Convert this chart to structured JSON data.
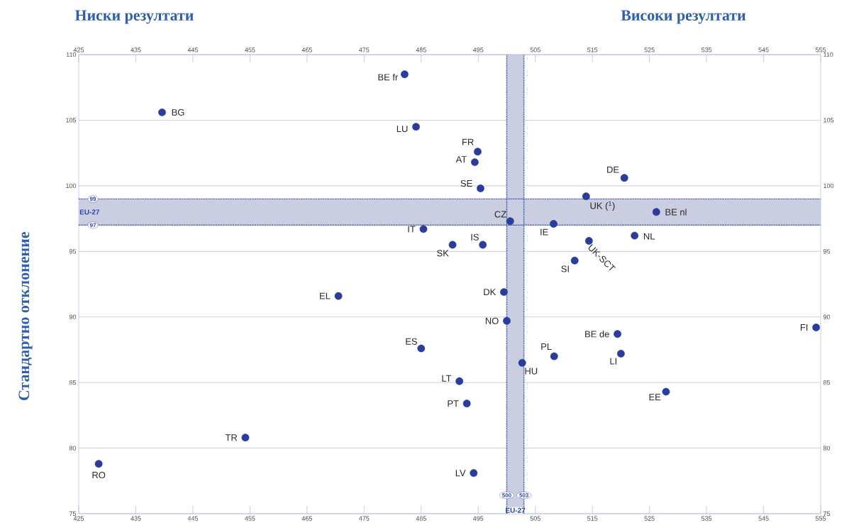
{
  "chart_data": {
    "type": "scatter",
    "ylabel": "Стандартно отклонение",
    "annotations": [
      "Ниски резултати",
      "Високи резултати"
    ],
    "ref_lines": [
      {
        "axis": "y",
        "value": 99,
        "label": "99",
        "color": "#2846aa",
        "line_style": "dotted"
      },
      {
        "axis": "y",
        "value": 97,
        "label": "97",
        "color": "#2846aa",
        "line_style": "dotted"
      },
      {
        "axis": "x",
        "value": 500,
        "label": "500",
        "color": "#2846aa",
        "line_style": "dotted"
      },
      {
        "axis": "x",
        "value": 503,
        "label": "503",
        "color": "#2846aa",
        "line_style": "dotted"
      }
    ],
    "xlim": [
      425,
      555
    ],
    "xticks": [
      425,
      435,
      445,
      455,
      465,
      475,
      485,
      495,
      505,
      515,
      525,
      535,
      545,
      555
    ],
    "x2lim": [
      425,
      555
    ],
    "x2ticks": [
      425,
      435,
      445,
      455,
      465,
      475,
      485,
      495,
      505,
      515,
      525,
      535,
      545,
      555
    ],
    "ylim": [
      75,
      110
    ],
    "yticks": [
      75,
      80,
      85,
      90,
      95,
      100,
      105,
      110
    ],
    "y2lim": [
      75,
      110
    ],
    "y2ticks": [
      75,
      80,
      85,
      90,
      95,
      100,
      105,
      110
    ],
    "grid": "y",
    "bands": [
      {
        "axis": "x",
        "from": 500,
        "to": 503,
        "label": "EU-27",
        "color": "#cbcee0"
      },
      {
        "axis": "y",
        "from": 97,
        "to": 99,
        "label": "EU-27",
        "color": "#cbcee0"
      }
    ],
    "series": [
      {
        "name": "BE fr",
        "color": "#2b3d9b",
        "x": [
          482.1
        ],
        "values": [
          108.5
        ]
      },
      {
        "name": "BG",
        "color": "#2b3d9b",
        "x": [
          439.6
        ],
        "values": [
          105.6
        ]
      },
      {
        "name": "LU",
        "color": "#2b3d9b",
        "x": [
          484.1
        ],
        "values": [
          104.5
        ]
      },
      {
        "name": "FR",
        "color": "#2b3d9b",
        "x": [
          494.9
        ],
        "values": [
          102.6
        ]
      },
      {
        "name": "AT",
        "color": "#2b3d9b",
        "x": [
          494.4
        ],
        "values": [
          101.8
        ]
      },
      {
        "name": "SE",
        "color": "#2b3d9b",
        "x": [
          495.4
        ],
        "values": [
          99.8
        ]
      },
      {
        "name": "DE",
        "color": "#2b3d9b",
        "x": [
          520.6
        ],
        "values": [
          100.6
        ]
      },
      {
        "name": "UK ($^{1}$)",
        "color": "#2b3d9b",
        "x": [
          513.9
        ],
        "values": [
          99.2
        ]
      },
      {
        "name": "BE nl",
        "color": "#2b3d9b",
        "x": [
          526.2
        ],
        "values": [
          98.0
        ]
      },
      {
        "name": "CZ",
        "color": "#2b3d9b",
        "x": [
          500.6
        ],
        "values": [
          97.3
        ]
      },
      {
        "name": "IE",
        "color": "#2b3d9b",
        "x": [
          508.2
        ],
        "values": [
          97.1
        ]
      },
      {
        "name": "IT",
        "color": "#2b3d9b",
        "x": [
          485.4
        ],
        "values": [
          96.7
        ]
      },
      {
        "name": "NL",
        "color": "#2b3d9b",
        "x": [
          522.4
        ],
        "values": [
          96.2
        ]
      },
      {
        "name": "IS",
        "color": "#2b3d9b",
        "x": [
          495.8
        ],
        "values": [
          95.5
        ]
      },
      {
        "name": "SK",
        "color": "#2b3d9b",
        "x": [
          490.5
        ],
        "values": [
          95.5
        ]
      },
      {
        "name": "UK-SCT",
        "color": "#2b3d9b",
        "x": [
          514.4
        ],
        "values": [
          95.8
        ]
      },
      {
        "name": "SI",
        "color": "#2b3d9b",
        "x": [
          511.9
        ],
        "values": [
          94.3
        ]
      },
      {
        "name": "EL",
        "color": "#2b3d9b",
        "x": [
          470.5
        ],
        "values": [
          91.6
        ]
      },
      {
        "name": "DK",
        "color": "#2b3d9b",
        "x": [
          499.5
        ],
        "values": [
          91.9
        ]
      },
      {
        "name": "NO",
        "color": "#2b3d9b",
        "x": [
          500.0
        ],
        "values": [
          89.7
        ]
      },
      {
        "name": "FI",
        "color": "#2b3d9b",
        "x": [
          554.2
        ],
        "values": [
          89.2
        ]
      },
      {
        "name": "BE de",
        "color": "#2b3d9b",
        "x": [
          519.4
        ],
        "values": [
          88.7
        ]
      },
      {
        "name": "ES",
        "color": "#2b3d9b",
        "x": [
          485.0
        ],
        "values": [
          87.6
        ]
      },
      {
        "name": "PL",
        "color": "#2b3d9b",
        "x": [
          508.3
        ],
        "values": [
          87.0
        ]
      },
      {
        "name": "LI",
        "color": "#2b3d9b",
        "x": [
          520.0
        ],
        "values": [
          87.2
        ]
      },
      {
        "name": "HU",
        "color": "#2b3d9b",
        "x": [
          502.7
        ],
        "values": [
          86.5
        ]
      },
      {
        "name": "LT",
        "color": "#2b3d9b",
        "x": [
          491.7
        ],
        "values": [
          85.1
        ]
      },
      {
        "name": "EE",
        "color": "#2b3d9b",
        "x": [
          527.9
        ],
        "values": [
          84.3
        ]
      },
      {
        "name": "PT",
        "color": "#2b3d9b",
        "x": [
          493.0
        ],
        "values": [
          83.4
        ]
      },
      {
        "name": "TR",
        "color": "#2b3d9b",
        "x": [
          454.2
        ],
        "values": [
          80.8
        ]
      },
      {
        "name": "RO",
        "color": "#2b3d9b",
        "x": [
          428.5
        ],
        "values": [
          78.8
        ]
      },
      {
        "name": "LV",
        "color": "#2b3d9b",
        "x": [
          494.2
        ],
        "values": [
          78.1
        ]
      }
    ]
  }
}
